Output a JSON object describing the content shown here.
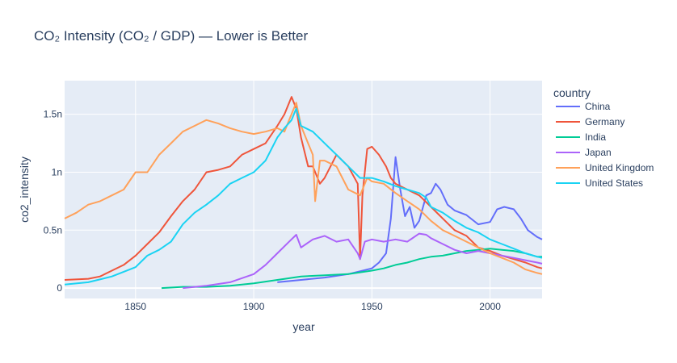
{
  "chart_data": {
    "type": "line",
    "title": "CO₂ Intensity (CO₂ / GDP) — Lower is Better",
    "xlabel": "year",
    "ylabel": "co2_intensity",
    "xlim": [
      1820,
      2022
    ],
    "ylim": [
      -0.09,
      1.79
    ],
    "x_ticks": [
      1850,
      1900,
      1950,
      2000
    ],
    "y_ticks": [
      0,
      0.5,
      1,
      1.5
    ],
    "y_tick_labels": [
      "0",
      "0.5n",
      "1n",
      "1.5n"
    ],
    "grid": true,
    "legend_position": "right",
    "legend_title": "country",
    "series": [
      {
        "name": "China",
        "color": "#636efa",
        "points": [
          [
            1910,
            0.05
          ],
          [
            1920,
            0.07
          ],
          [
            1930,
            0.09
          ],
          [
            1940,
            0.12
          ],
          [
            1950,
            0.17
          ],
          [
            1953,
            0.22
          ],
          [
            1956,
            0.3
          ],
          [
            1958,
            0.6
          ],
          [
            1960,
            1.13
          ],
          [
            1962,
            0.85
          ],
          [
            1964,
            0.62
          ],
          [
            1966,
            0.7
          ],
          [
            1968,
            0.52
          ],
          [
            1970,
            0.58
          ],
          [
            1973,
            0.8
          ],
          [
            1975,
            0.82
          ],
          [
            1977,
            0.9
          ],
          [
            1979,
            0.85
          ],
          [
            1982,
            0.72
          ],
          [
            1985,
            0.67
          ],
          [
            1990,
            0.63
          ],
          [
            1995,
            0.55
          ],
          [
            2000,
            0.57
          ],
          [
            2003,
            0.68
          ],
          [
            2006,
            0.7
          ],
          [
            2010,
            0.68
          ],
          [
            2013,
            0.6
          ],
          [
            2016,
            0.5
          ],
          [
            2020,
            0.44
          ],
          [
            2022,
            0.42
          ]
        ]
      },
      {
        "name": "Germany",
        "color": "#EF553B",
        "points": [
          [
            1820,
            0.07
          ],
          [
            1830,
            0.08
          ],
          [
            1835,
            0.1
          ],
          [
            1840,
            0.15
          ],
          [
            1845,
            0.2
          ],
          [
            1850,
            0.28
          ],
          [
            1855,
            0.38
          ],
          [
            1860,
            0.48
          ],
          [
            1865,
            0.62
          ],
          [
            1870,
            0.75
          ],
          [
            1875,
            0.85
          ],
          [
            1880,
            1.0
          ],
          [
            1885,
            1.02
          ],
          [
            1890,
            1.05
          ],
          [
            1895,
            1.15
          ],
          [
            1900,
            1.2
          ],
          [
            1905,
            1.25
          ],
          [
            1910,
            1.4
          ],
          [
            1913,
            1.5
          ],
          [
            1916,
            1.65
          ],
          [
            1918,
            1.55
          ],
          [
            1920,
            1.3
          ],
          [
            1923,
            1.05
          ],
          [
            1925,
            1.05
          ],
          [
            1928,
            0.9
          ],
          [
            1930,
            0.95
          ],
          [
            1935,
            1.15
          ],
          [
            1940,
            1.05
          ],
          [
            1944,
            0.9
          ],
          [
            1945,
            0.25
          ],
          [
            1946,
            0.8
          ],
          [
            1948,
            1.2
          ],
          [
            1950,
            1.22
          ],
          [
            1953,
            1.15
          ],
          [
            1956,
            1.05
          ],
          [
            1958,
            0.95
          ],
          [
            1960,
            0.9
          ],
          [
            1965,
            0.85
          ],
          [
            1970,
            0.8
          ],
          [
            1975,
            0.7
          ],
          [
            1980,
            0.6
          ],
          [
            1985,
            0.5
          ],
          [
            1990,
            0.45
          ],
          [
            1995,
            0.35
          ],
          [
            2000,
            0.32
          ],
          [
            2005,
            0.28
          ],
          [
            2010,
            0.25
          ],
          [
            2015,
            0.22
          ],
          [
            2020,
            0.18
          ],
          [
            2022,
            0.17
          ]
        ]
      },
      {
        "name": "India",
        "color": "#00cc96",
        "points": [
          [
            1861,
            0.0
          ],
          [
            1870,
            0.01
          ],
          [
            1880,
            0.01
          ],
          [
            1890,
            0.02
          ],
          [
            1900,
            0.04
          ],
          [
            1910,
            0.07
          ],
          [
            1920,
            0.1
          ],
          [
            1930,
            0.11
          ],
          [
            1940,
            0.12
          ],
          [
            1950,
            0.15
          ],
          [
            1955,
            0.17
          ],
          [
            1960,
            0.2
          ],
          [
            1965,
            0.22
          ],
          [
            1970,
            0.25
          ],
          [
            1975,
            0.27
          ],
          [
            1980,
            0.28
          ],
          [
            1985,
            0.3
          ],
          [
            1990,
            0.32
          ],
          [
            1995,
            0.33
          ],
          [
            2000,
            0.34
          ],
          [
            2005,
            0.33
          ],
          [
            2010,
            0.32
          ],
          [
            2015,
            0.3
          ],
          [
            2020,
            0.27
          ],
          [
            2022,
            0.27
          ]
        ]
      },
      {
        "name": "Japan",
        "color": "#ab63fa",
        "points": [
          [
            1870,
            0.0
          ],
          [
            1880,
            0.02
          ],
          [
            1890,
            0.05
          ],
          [
            1900,
            0.12
          ],
          [
            1905,
            0.2
          ],
          [
            1910,
            0.3
          ],
          [
            1915,
            0.4
          ],
          [
            1918,
            0.46
          ],
          [
            1920,
            0.35
          ],
          [
            1925,
            0.42
          ],
          [
            1930,
            0.45
          ],
          [
            1935,
            0.4
          ],
          [
            1940,
            0.42
          ],
          [
            1944,
            0.3
          ],
          [
            1945,
            0.25
          ],
          [
            1947,
            0.4
          ],
          [
            1950,
            0.42
          ],
          [
            1955,
            0.4
          ],
          [
            1960,
            0.42
          ],
          [
            1965,
            0.4
          ],
          [
            1970,
            0.47
          ],
          [
            1973,
            0.46
          ],
          [
            1975,
            0.43
          ],
          [
            1980,
            0.38
          ],
          [
            1985,
            0.33
          ],
          [
            1990,
            0.3
          ],
          [
            1995,
            0.32
          ],
          [
            2000,
            0.3
          ],
          [
            2005,
            0.28
          ],
          [
            2010,
            0.26
          ],
          [
            2015,
            0.24
          ],
          [
            2020,
            0.22
          ],
          [
            2022,
            0.21
          ]
        ]
      },
      {
        "name": "United Kingdom",
        "color": "#FFA15A",
        "points": [
          [
            1820,
            0.6
          ],
          [
            1825,
            0.65
          ],
          [
            1830,
            0.72
          ],
          [
            1835,
            0.75
          ],
          [
            1840,
            0.8
          ],
          [
            1845,
            0.85
          ],
          [
            1850,
            1.0
          ],
          [
            1855,
            1.0
          ],
          [
            1860,
            1.15
          ],
          [
            1865,
            1.25
          ],
          [
            1870,
            1.35
          ],
          [
            1875,
            1.4
          ],
          [
            1880,
            1.45
          ],
          [
            1885,
            1.42
          ],
          [
            1890,
            1.38
          ],
          [
            1895,
            1.35
          ],
          [
            1900,
            1.33
          ],
          [
            1905,
            1.35
          ],
          [
            1910,
            1.38
          ],
          [
            1913,
            1.35
          ],
          [
            1915,
            1.45
          ],
          [
            1918,
            1.6
          ],
          [
            1920,
            1.4
          ],
          [
            1922,
            1.3
          ],
          [
            1925,
            1.15
          ],
          [
            1926,
            0.75
          ],
          [
            1928,
            1.1
          ],
          [
            1930,
            1.1
          ],
          [
            1935,
            1.05
          ],
          [
            1940,
            0.85
          ],
          [
            1945,
            0.8
          ],
          [
            1948,
            0.95
          ],
          [
            1950,
            0.92
          ],
          [
            1955,
            0.9
          ],
          [
            1960,
            0.82
          ],
          [
            1965,
            0.75
          ],
          [
            1970,
            0.68
          ],
          [
            1975,
            0.58
          ],
          [
            1980,
            0.5
          ],
          [
            1985,
            0.45
          ],
          [
            1990,
            0.4
          ],
          [
            1995,
            0.35
          ],
          [
            2000,
            0.3
          ],
          [
            2005,
            0.26
          ],
          [
            2010,
            0.22
          ],
          [
            2015,
            0.16
          ],
          [
            2020,
            0.13
          ],
          [
            2022,
            0.12
          ]
        ]
      },
      {
        "name": "United States",
        "color": "#19d3f3",
        "points": [
          [
            1820,
            0.03
          ],
          [
            1830,
            0.05
          ],
          [
            1840,
            0.1
          ],
          [
            1850,
            0.18
          ],
          [
            1855,
            0.28
          ],
          [
            1860,
            0.33
          ],
          [
            1865,
            0.4
          ],
          [
            1870,
            0.55
          ],
          [
            1875,
            0.65
          ],
          [
            1880,
            0.72
          ],
          [
            1885,
            0.8
          ],
          [
            1890,
            0.9
          ],
          [
            1895,
            0.95
          ],
          [
            1900,
            1.0
          ],
          [
            1905,
            1.1
          ],
          [
            1910,
            1.3
          ],
          [
            1913,
            1.38
          ],
          [
            1916,
            1.45
          ],
          [
            1918,
            1.55
          ],
          [
            1920,
            1.4
          ],
          [
            1925,
            1.35
          ],
          [
            1930,
            1.25
          ],
          [
            1935,
            1.15
          ],
          [
            1940,
            1.05
          ],
          [
            1945,
            0.95
          ],
          [
            1950,
            0.95
          ],
          [
            1955,
            0.92
          ],
          [
            1960,
            0.88
          ],
          [
            1965,
            0.85
          ],
          [
            1970,
            0.82
          ],
          [
            1973,
            0.78
          ],
          [
            1975,
            0.7
          ],
          [
            1980,
            0.65
          ],
          [
            1985,
            0.58
          ],
          [
            1990,
            0.52
          ],
          [
            1995,
            0.48
          ],
          [
            2000,
            0.42
          ],
          [
            2005,
            0.38
          ],
          [
            2010,
            0.34
          ],
          [
            2015,
            0.3
          ],
          [
            2020,
            0.27
          ],
          [
            2022,
            0.26
          ]
        ]
      }
    ]
  }
}
